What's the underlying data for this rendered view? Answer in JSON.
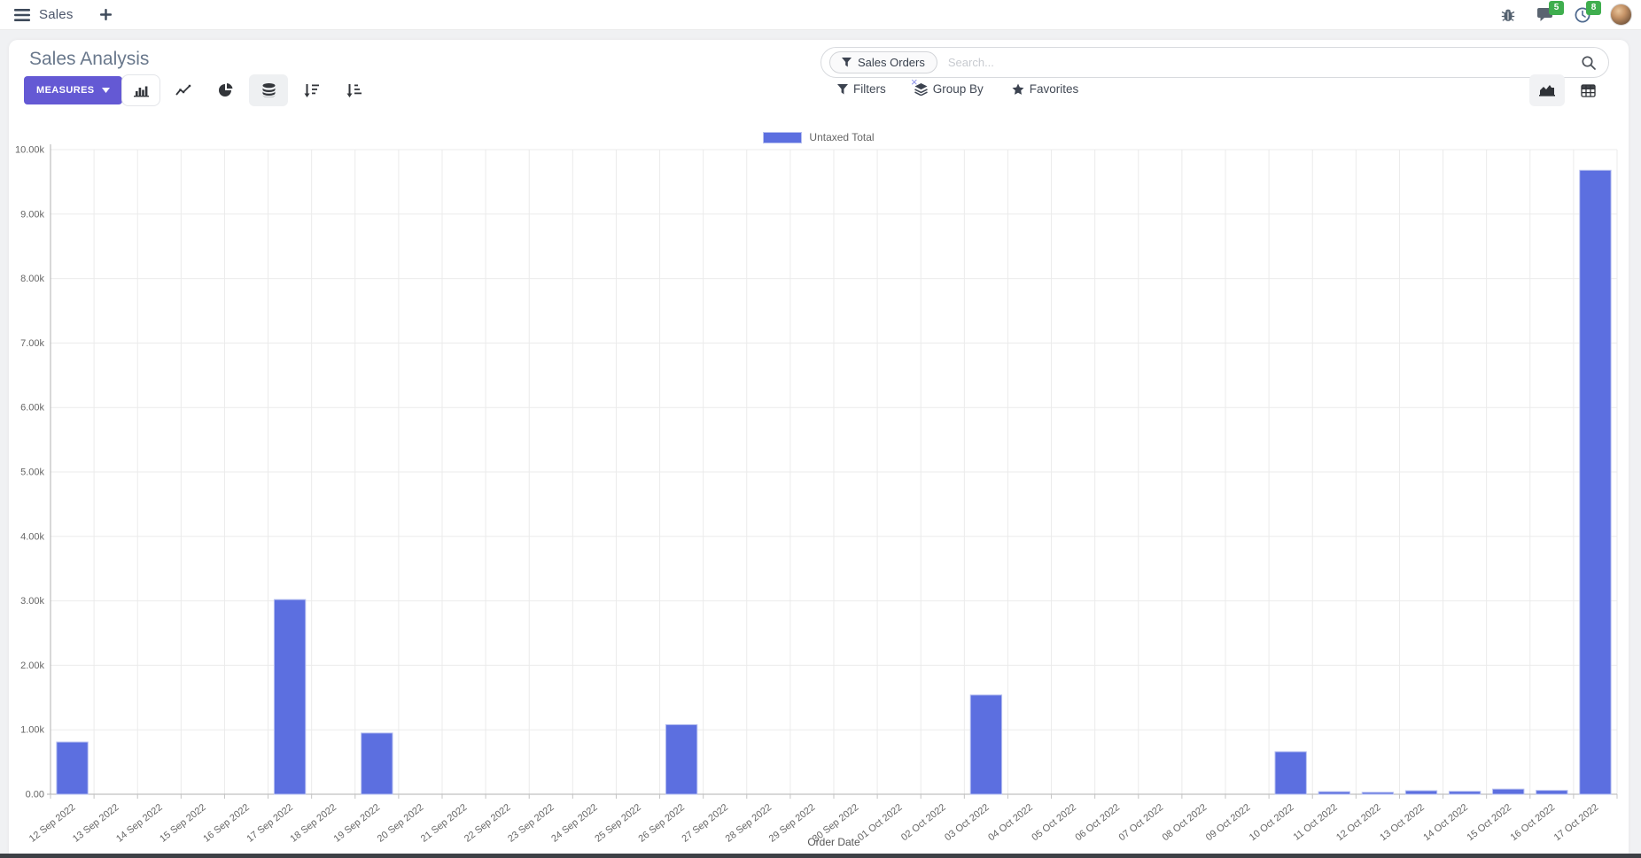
{
  "navbar": {
    "app_label": "Sales",
    "messages_badge": "5",
    "activities_badge": "8",
    "icons": [
      "menu-icon",
      "plus-icon",
      "bug-icon",
      "messages-icon",
      "activities-clock-icon",
      "avatar"
    ]
  },
  "control_panel": {
    "title": "Sales Analysis",
    "measures_label": "MEASURES",
    "chart_type_icons": [
      "bar-chart-icon",
      "line-chart-icon",
      "pie-chart-icon",
      "stacked-icon",
      "sort-desc-icon",
      "sort-asc-icon"
    ],
    "search": {
      "facet_label": "Sales Orders",
      "placeholder": "Search...",
      "remove_facet_label": "×"
    },
    "buttons": {
      "filters": "Filters",
      "group_by": "Group By",
      "favorites": "Favorites"
    },
    "view_switcher_icons": [
      "area-chart-view-icon",
      "pivot-view-icon"
    ]
  },
  "chart_data": {
    "type": "bar",
    "title": "",
    "xlabel": "Order Date",
    "ylabel": "",
    "legend_position": "top",
    "grid": true,
    "ylim": [
      0,
      10000
    ],
    "y_ticks": [
      "0.00",
      "1.00k",
      "2.00k",
      "3.00k",
      "4.00k",
      "5.00k",
      "6.00k",
      "7.00k",
      "8.00k",
      "9.00k",
      "10.00k"
    ],
    "categories": [
      "12 Sep 2022",
      "13 Sep 2022",
      "14 Sep 2022",
      "15 Sep 2022",
      "16 Sep 2022",
      "17 Sep 2022",
      "18 Sep 2022",
      "19 Sep 2022",
      "20 Sep 2022",
      "21 Sep 2022",
      "22 Sep 2022",
      "23 Sep 2022",
      "24 Sep 2022",
      "25 Sep 2022",
      "26 Sep 2022",
      "27 Sep 2022",
      "28 Sep 2022",
      "29 Sep 2022",
      "30 Sep 2022",
      "01 Oct 2022",
      "02 Oct 2022",
      "03 Oct 2022",
      "04 Oct 2022",
      "05 Oct 2022",
      "06 Oct 2022",
      "07 Oct 2022",
      "08 Oct 2022",
      "09 Oct 2022",
      "10 Oct 2022",
      "11 Oct 2022",
      "12 Oct 2022",
      "13 Oct 2022",
      "14 Oct 2022",
      "15 Oct 2022",
      "16 Oct 2022",
      "17 Oct 2022"
    ],
    "series": [
      {
        "name": "Untaxed Total",
        "values": [
          810,
          0,
          0,
          0,
          0,
          3020,
          0,
          950,
          0,
          0,
          0,
          0,
          0,
          0,
          1080,
          0,
          0,
          0,
          0,
          0,
          0,
          1540,
          0,
          0,
          0,
          0,
          0,
          0,
          660,
          40,
          30,
          55,
          45,
          80,
          60,
          9680
        ]
      }
    ],
    "bar_color": "#5c6fe0",
    "bar_border_color": "#b7c0f0",
    "axis_color": "#b0b0b0",
    "gridline_color": "#ebebeb",
    "tick_label_color": "#666666"
  }
}
